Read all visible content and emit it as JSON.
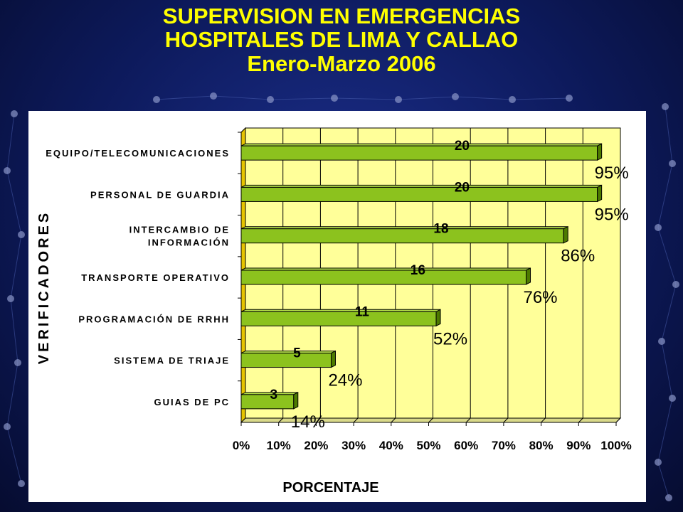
{
  "title": {
    "line1": "SUPERVISION EN EMERGENCIAS",
    "line2": "HOSPITALES DE LIMA Y CALLAO",
    "subtitle": "Enero-Marzo 2006"
  },
  "colors": {
    "background": "#0d1a5c",
    "title": "#ffff00",
    "plot_area": "#ffff99",
    "bar_fill": "#8cc21e",
    "bar_dark": "#4d7a00",
    "axis_wall": "#e6c400"
  },
  "chart_data": {
    "type": "bar",
    "orientation": "horizontal",
    "categories": [
      [
        "EQUIPO/TELECOMUNICACIONES"
      ],
      [
        "PERSONAL DE GUARDIA"
      ],
      [
        "INTERCAMBIO DE",
        "INFORMACIÓN"
      ],
      [
        "TRANSPORTE OPERATIVO"
      ],
      [
        "PROGRAMACIÓN DE RRHH"
      ],
      [
        "SISTEMA DE TRIAJE"
      ],
      [
        "GUIAS DE PC"
      ]
    ],
    "values": [
      95,
      95,
      86,
      76,
      52,
      24,
      14
    ],
    "counts": [
      "20",
      "20",
      "18",
      "16",
      "11",
      "5",
      "3"
    ],
    "percent_labels": [
      "95%",
      "95%",
      "86%",
      "76%",
      "52%",
      "24%",
      "14%"
    ],
    "xlim": [
      0,
      100
    ],
    "x_ticks": [
      "0%",
      "10%",
      "20%",
      "30%",
      "40%",
      "50%",
      "60%",
      "70%",
      "80%",
      "90%",
      "100%"
    ],
    "xlabel": "PORCENTAJE",
    "ylabel": "VERIFICADORES",
    "grid": "vertical"
  }
}
